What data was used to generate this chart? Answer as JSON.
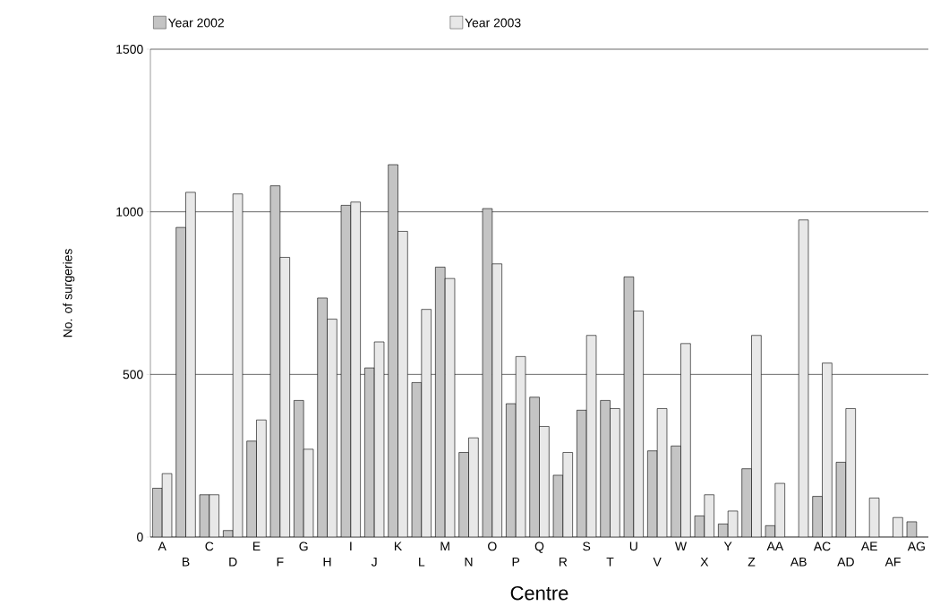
{
  "chart_data": {
    "type": "bar",
    "xlabel": "Centre",
    "ylabel": "No. of surgeries",
    "categories": [
      "A",
      "B",
      "C",
      "D",
      "E",
      "F",
      "G",
      "H",
      "I",
      "J",
      "K",
      "L",
      "M",
      "N",
      "O",
      "P",
      "Q",
      "R",
      "S",
      "T",
      "U",
      "V",
      "W",
      "X",
      "Y",
      "Z",
      "AA",
      "AB",
      "AC",
      "AD",
      "AE",
      "AF",
      "AG"
    ],
    "series": [
      {
        "name": "Year 2002",
        "color": "#c4c4c4",
        "values": [
          150,
          952,
          130,
          20,
          295,
          1080,
          420,
          735,
          1020,
          520,
          1145,
          475,
          830,
          260,
          1010,
          410,
          430,
          190,
          390,
          420,
          800,
          265,
          280,
          65,
          40,
          210,
          35,
          null,
          125,
          230,
          null,
          null,
          47
        ]
      },
      {
        "name": "Year 2003",
        "color": "#e8e8e8",
        "values": [
          195,
          1060,
          130,
          1055,
          360,
          860,
          270,
          670,
          1030,
          600,
          940,
          700,
          795,
          305,
          840,
          555,
          340,
          260,
          620,
          395,
          695,
          395,
          595,
          130,
          80,
          620,
          165,
          975,
          535,
          395,
          120,
          60,
          null
        ]
      }
    ],
    "ylim": [
      0,
      1500
    ],
    "yticks": [
      0,
      500,
      1000,
      1500
    ],
    "grid": "y",
    "legend": "top"
  }
}
